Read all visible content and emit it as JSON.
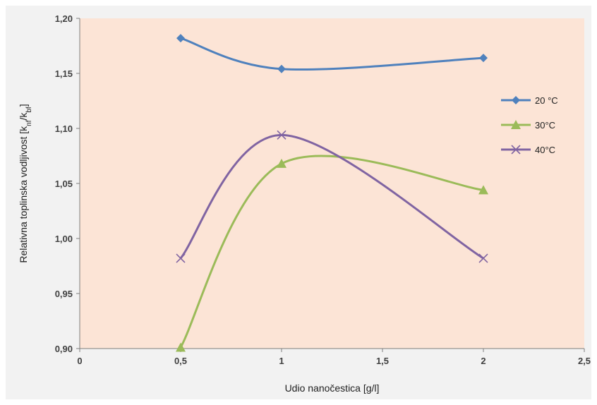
{
  "chart_data": {
    "type": "line",
    "xlabel": "Udio nanočestica  [g/l]",
    "ylabel_parts": {
      "prefix": "Relativna toplinska  vodljivost  [k",
      "sub1": "nf",
      "mid": "/k",
      "sub2": "bf",
      "suffix": "]"
    },
    "xlim": [
      0,
      2.5
    ],
    "ylim": [
      0.9,
      1.2
    ],
    "xticks": [
      0,
      0.5,
      1,
      1.5,
      2,
      2.5
    ],
    "xtick_labels": [
      "0",
      "0,5",
      "1",
      "1,5",
      "2",
      "2,5"
    ],
    "yticks": [
      0.9,
      0.95,
      1.0,
      1.05,
      1.1,
      1.15,
      1.2
    ],
    "ytick_labels": [
      "0,90",
      "0,95",
      "1,00",
      "1,05",
      "1,10",
      "1,15",
      "1,20"
    ],
    "grid": false,
    "legend_position": "right",
    "plot_background": "#fce4d6",
    "series": [
      {
        "name": "20 °C",
        "color": "#4f81bd",
        "marker": "diamond",
        "x": [
          0.5,
          1,
          2
        ],
        "y": [
          1.182,
          1.154,
          1.164
        ]
      },
      {
        "name": "30°C",
        "color": "#9bbb59",
        "marker": "triangle",
        "x": [
          0.5,
          1,
          2
        ],
        "y": [
          0.901,
          1.068,
          1.044
        ]
      },
      {
        "name": "40°C",
        "color": "#8064a2",
        "marker": "x",
        "x": [
          0.5,
          1,
          2
        ],
        "y": [
          0.982,
          1.094,
          0.982
        ]
      }
    ]
  }
}
